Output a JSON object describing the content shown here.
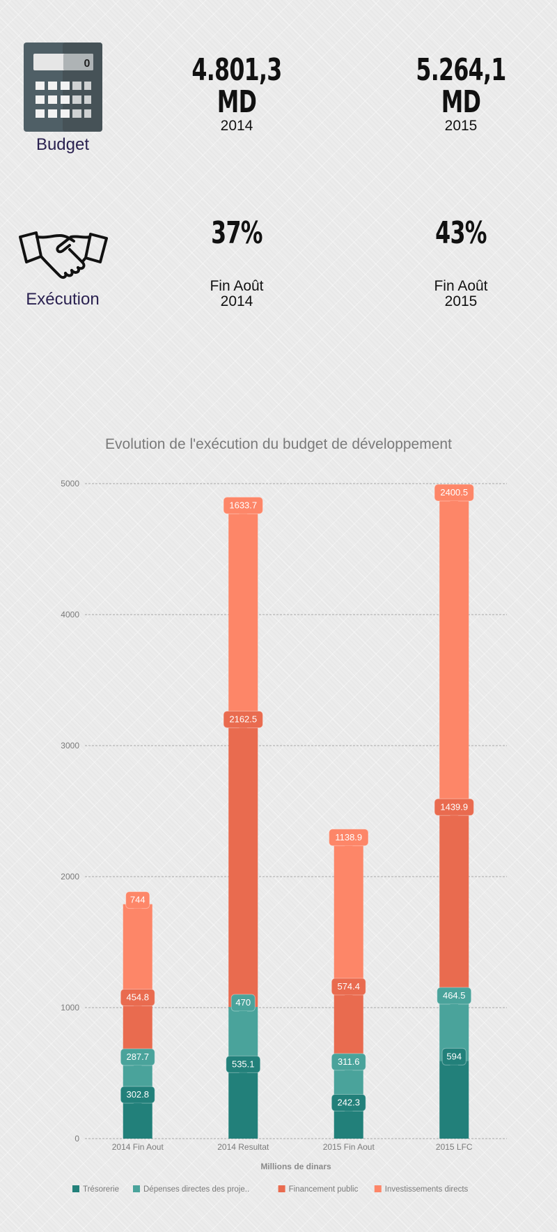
{
  "budget": {
    "label": "Budget",
    "calc_display": "0",
    "stats": [
      {
        "value": "4.801,3",
        "unit": "MD",
        "year": "2014"
      },
      {
        "value": "5.264,1",
        "unit": "MD",
        "year": "2015"
      }
    ]
  },
  "execution": {
    "label": "Exécution",
    "stats": [
      {
        "value": "37%",
        "caption_line1": "Fin Août",
        "caption_line2": "2014"
      },
      {
        "value": "43%",
        "caption_line1": "Fin Août",
        "caption_line2": "2015"
      }
    ]
  },
  "chart_data": {
    "type": "bar",
    "stacked": true,
    "title": "Evolution de l'exécution du budget de développement",
    "xlabel": "Millions de dinars",
    "ylabel": "",
    "ylim": [
      0,
      5000
    ],
    "yticks": [
      0,
      1000,
      2000,
      3000,
      4000,
      5000
    ],
    "grid": true,
    "legend_position": "bottom",
    "categories": [
      "2014 Fin Aout",
      "2014 Resultat",
      "2015 Fin Aout",
      "2015 LFC"
    ],
    "series": [
      {
        "name": "Trésorerie",
        "color": "#22807a",
        "values": [
          302.8,
          535.1,
          242.3,
          594
        ],
        "labels": [
          "302.8",
          "535.1",
          "242.3",
          "594"
        ]
      },
      {
        "name": "Dépenses directes des proje..",
        "color": "#4aa39b",
        "values": [
          287.7,
          470,
          311.6,
          464.5
        ],
        "labels": [
          "287.7",
          "470",
          "311.6",
          "464.5"
        ]
      },
      {
        "name": "Financement public",
        "color": "#e96b4f",
        "values": [
          454.8,
          2162.5,
          574.4,
          1439.9
        ],
        "labels": [
          "454.8",
          "2162.5",
          "574.4",
          "1439.9"
        ]
      },
      {
        "name": "Investissements directs",
        "color": "#fd8668",
        "values": [
          744,
          1633.7,
          1138.9,
          2400.5
        ],
        "labels": [
          "744",
          "1633.7",
          "1138.9",
          "2400.5"
        ]
      }
    ]
  }
}
